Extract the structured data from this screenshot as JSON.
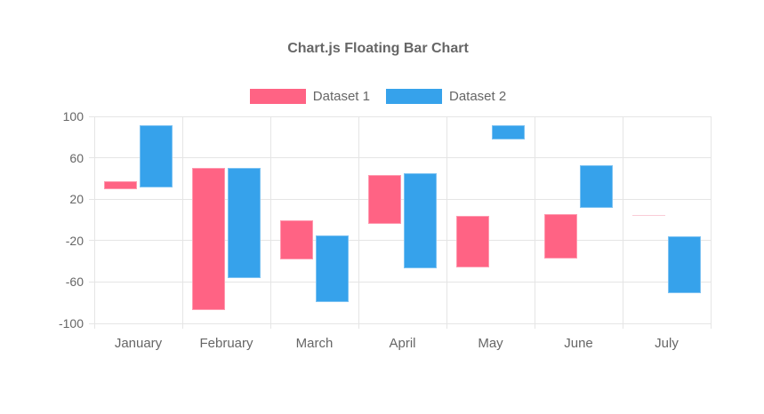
{
  "title": "Chart.js Floating Bar Chart",
  "legend": [
    {
      "label": "Dataset 1",
      "color": "#FF6384"
    },
    {
      "label": "Dataset 2",
      "color": "#36A2EB"
    }
  ],
  "colors": {
    "text": "#666666",
    "grid": "#e5e5e5",
    "background": "#ffffff"
  },
  "chart_data": {
    "type": "bar",
    "variant": "floating",
    "title": "Chart.js Floating Bar Chart",
    "categories": [
      "January",
      "February",
      "March",
      "April",
      "May",
      "June",
      "July"
    ],
    "series": [
      {
        "name": "Dataset 1",
        "color": "#FF6384",
        "faint_color": "#f9ccd6",
        "values": [
          [
            30,
            37
          ],
          [
            -87,
            50
          ],
          [
            -38,
            0
          ],
          [
            -4,
            43
          ],
          [
            -46,
            4
          ],
          [
            -37,
            6
          ],
          [
            4,
            5
          ]
        ]
      },
      {
        "name": "Dataset 2",
        "color": "#36A2EB",
        "values": [
          [
            31,
            91
          ],
          [
            -56,
            50
          ],
          [
            -79,
            -15
          ],
          [
            -47,
            45
          ],
          [
            78,
            91
          ],
          [
            12,
            53
          ],
          [
            -71,
            -16
          ]
        ]
      }
    ],
    "y_ticks": [
      100,
      60,
      20,
      -20,
      -60,
      -100
    ],
    "ylim": [
      -100,
      100
    ],
    "grid": true,
    "legend_position": "top"
  }
}
